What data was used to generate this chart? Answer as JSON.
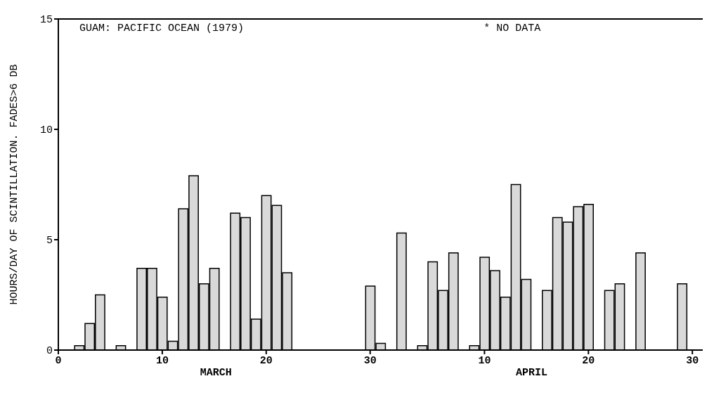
{
  "chart_data": {
    "type": "bar",
    "title": "GUAM: PACIFIC OCEAN  (1979)",
    "xlabel": "MARCH",
    "ylabel": "HOURS/DAY OF SCINTILLATION. FADES>6 DB",
    "annotations": [
      "* NO DATA",
      "APRIL"
    ],
    "x": [
      "--03-02",
      "--03-03",
      "--03-04",
      "--03-06",
      "--03-08",
      "--03-09",
      "--03-10",
      "--03-11",
      "--03-12",
      "--03-13",
      "--03-14",
      "--03-15",
      "--03-17",
      "--03-18",
      "--03-19",
      "--03-20",
      "--03-21",
      "--03-22",
      "--03-30",
      "--03-31",
      "--04-02",
      "--04-04",
      "--04-05",
      "--04-06",
      "--04-07",
      "--04-09",
      "--04-10",
      "--04-11",
      "--04-12",
      "--04-13",
      "--04-14",
      "--04-16",
      "--04-17",
      "--04-18",
      "--04-19",
      "--04-20",
      "--04-22",
      "--04-23",
      "--04-25",
      "--04-29"
    ],
    "values": [
      0.2,
      1.2,
      2.5,
      0.2,
      3.7,
      3.7,
      2.4,
      0.4,
      6.4,
      7.9,
      3.0,
      3.7,
      6.2,
      6.0,
      1.4,
      7.0,
      6.55,
      3.5,
      2.9,
      0.3,
      5.3,
      0.2,
      4.0,
      2.7,
      4.4,
      0.2,
      4.2,
      3.6,
      2.4,
      7.5,
      3.2,
      2.7,
      6.0,
      5.8,
      6.5,
      6.6,
      2.7,
      3.0,
      4.4,
      3.0
    ],
    "color": "#d9d9d9",
    "xlim": [
      "--02-28",
      "--05-01"
    ],
    "xticks": [
      {
        "value": "--02-28",
        "label": "0"
      },
      {
        "value": "--03-10",
        "label": "10"
      },
      {
        "value": "--03-20",
        "label": "20"
      },
      {
        "value": "--03-30",
        "label": "30"
      },
      {
        "value": "--04-10",
        "label": "10"
      },
      {
        "value": "--04-20",
        "label": "20"
      },
      {
        "value": "--04-30",
        "label": "30"
      }
    ],
    "ylim": [
      0,
      15
    ],
    "yticks": [
      0,
      5,
      10,
      15
    ],
    "grid": false,
    "legend": false
  }
}
